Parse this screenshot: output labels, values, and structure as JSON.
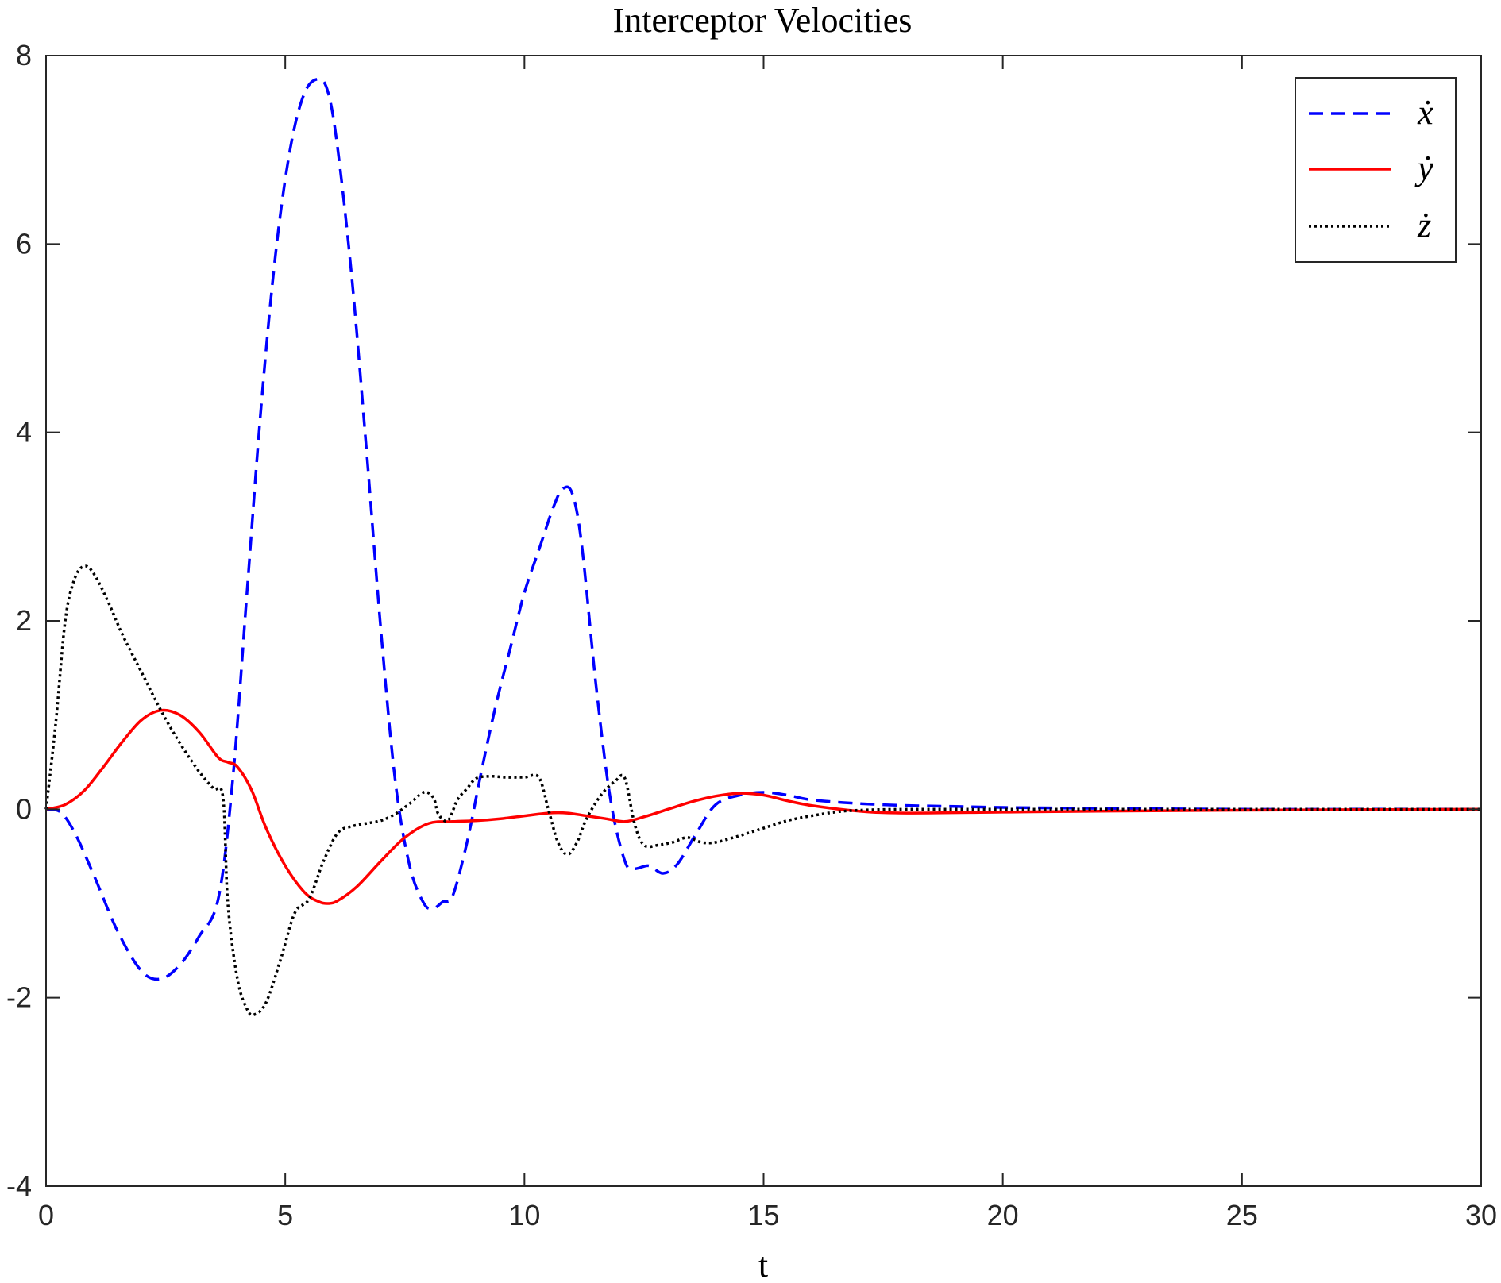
{
  "chart_data": {
    "type": "line",
    "title": "Interceptor Velocities",
    "xlabel": "t",
    "ylabel": "",
    "xlim": [
      0,
      30
    ],
    "ylim": [
      -4,
      8
    ],
    "xticks": [
      0,
      5,
      10,
      15,
      20,
      25,
      30
    ],
    "yticks": [
      -4,
      -2,
      0,
      2,
      4,
      6,
      8
    ],
    "grid": false,
    "legend_position": "top-right",
    "series": [
      {
        "name": "ẋ",
        "color": "#0000ff",
        "style": "dashed",
        "x": [
          0,
          0.3,
          0.6,
          1.0,
          1.5,
          2.0,
          2.4,
          2.8,
          3.2,
          3.6,
          3.9,
          4.2,
          4.5,
          4.8,
          5.1,
          5.4,
          5.7,
          5.9,
          6.1,
          6.4,
          6.7,
          7.0,
          7.3,
          7.6,
          7.9,
          8.1,
          8.3,
          8.5,
          8.8,
          9.1,
          9.4,
          9.7,
          10.0,
          10.3,
          10.6,
          10.8,
          11.0,
          11.2,
          11.5,
          11.8,
          12.1,
          12.3,
          12.6,
          12.9,
          13.2,
          13.6,
          14.0,
          14.5,
          15.0,
          15.5,
          16.0,
          17.0,
          18.0,
          19.0,
          20.0,
          22.0,
          25.0,
          27.5,
          30.0
        ],
        "y": [
          0,
          -0.03,
          -0.25,
          -0.7,
          -1.3,
          -1.72,
          -1.8,
          -1.65,
          -1.35,
          -0.95,
          0.3,
          2.3,
          4.3,
          5.9,
          7.0,
          7.6,
          7.75,
          7.6,
          7.0,
          5.6,
          3.8,
          1.9,
          0.3,
          -0.6,
          -1.0,
          -1.05,
          -0.98,
          -0.92,
          -0.35,
          0.4,
          1.1,
          1.7,
          2.3,
          2.75,
          3.2,
          3.4,
          3.35,
          2.8,
          1.3,
          0.1,
          -0.55,
          -0.63,
          -0.6,
          -0.68,
          -0.58,
          -0.25,
          0.05,
          0.15,
          0.18,
          0.15,
          0.1,
          0.06,
          0.04,
          0.03,
          0.02,
          0.01,
          0.0,
          0.0,
          0.0
        ]
      },
      {
        "name": "ẏ",
        "color": "#ff0000",
        "style": "solid",
        "x": [
          0,
          0.4,
          0.8,
          1.2,
          1.6,
          2.0,
          2.4,
          2.8,
          3.2,
          3.6,
          3.8,
          4.0,
          4.3,
          4.6,
          5.0,
          5.4,
          5.7,
          5.9,
          6.1,
          6.5,
          7.0,
          7.5,
          8.0,
          8.5,
          9.0,
          9.5,
          10.0,
          10.5,
          10.9,
          11.3,
          11.7,
          12.1,
          12.5,
          13.0,
          13.5,
          14.0,
          14.5,
          15.0,
          15.5,
          16.0,
          17.0,
          18.0,
          20.0,
          22.0,
          25.0,
          30.0
        ],
        "y": [
          0.0,
          0.05,
          0.2,
          0.45,
          0.72,
          0.95,
          1.05,
          1.0,
          0.82,
          0.55,
          0.5,
          0.45,
          0.2,
          -0.2,
          -0.6,
          -0.88,
          -0.98,
          -1.0,
          -0.97,
          -0.82,
          -0.55,
          -0.3,
          -0.15,
          -0.13,
          -0.12,
          -0.1,
          -0.07,
          -0.04,
          -0.04,
          -0.07,
          -0.1,
          -0.13,
          -0.08,
          0.0,
          0.08,
          0.14,
          0.17,
          0.15,
          0.09,
          0.04,
          -0.02,
          -0.04,
          -0.03,
          -0.02,
          -0.01,
          0.0
        ]
      },
      {
        "name": "ż",
        "color": "#000000",
        "style": "dotted",
        "x": [
          0,
          0.2,
          0.4,
          0.6,
          0.8,
          1.0,
          1.3,
          1.6,
          2.0,
          2.4,
          2.8,
          3.2,
          3.5,
          3.7,
          3.8,
          4.0,
          4.2,
          4.35,
          4.6,
          4.9,
          5.2,
          5.5,
          5.8,
          6.1,
          6.4,
          6.7,
          7.0,
          7.3,
          7.6,
          7.9,
          8.1,
          8.2,
          8.4,
          8.6,
          8.8,
          9.0,
          9.3,
          9.6,
          10.0,
          10.3,
          10.5,
          10.7,
          10.9,
          11.1,
          11.3,
          11.6,
          11.9,
          12.1,
          12.3,
          12.5,
          12.8,
          13.1,
          13.4,
          13.7,
          14.0,
          14.5,
          15.0,
          15.5,
          16.0,
          16.5,
          17.0,
          18.0,
          20.0,
          22.0,
          25.0,
          30.0
        ],
        "y": [
          0.0,
          0.9,
          2.0,
          2.45,
          2.58,
          2.5,
          2.2,
          1.85,
          1.45,
          1.05,
          0.7,
          0.4,
          0.22,
          0.12,
          -1.0,
          -1.8,
          -2.12,
          -2.18,
          -2.05,
          -1.6,
          -1.1,
          -0.95,
          -0.55,
          -0.25,
          -0.18,
          -0.15,
          -0.12,
          -0.05,
          0.06,
          0.18,
          0.12,
          -0.05,
          -0.12,
          0.1,
          0.22,
          0.33,
          0.35,
          0.34,
          0.34,
          0.34,
          0.0,
          -0.35,
          -0.48,
          -0.35,
          -0.1,
          0.15,
          0.3,
          0.33,
          -0.15,
          -0.38,
          -0.38,
          -0.35,
          -0.3,
          -0.35,
          -0.35,
          -0.28,
          -0.2,
          -0.12,
          -0.07,
          -0.03,
          -0.01,
          0.0,
          0.0,
          0.0,
          0.0,
          0.0
        ]
      }
    ]
  }
}
